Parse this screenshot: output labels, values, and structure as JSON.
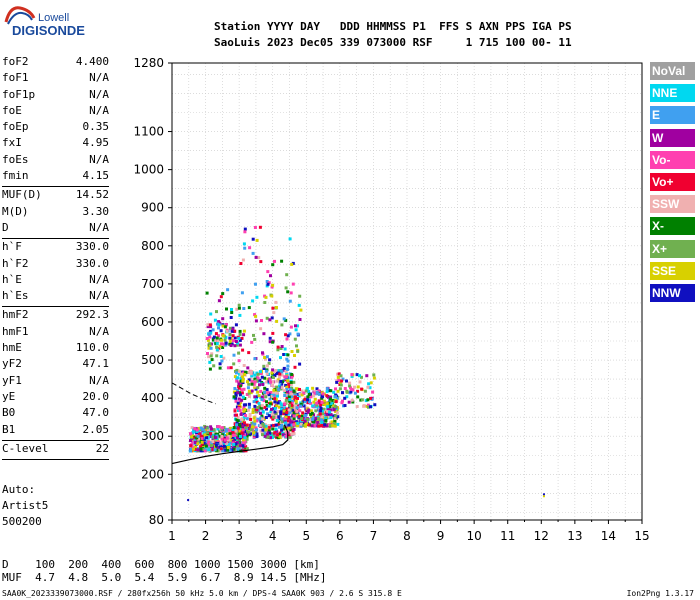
{
  "logo": {
    "top": "Lowell",
    "bottom": "DIGISONDE"
  },
  "header": {
    "line1": "Station YYYY DAY   DDD HHMMSS P1  FFS S AXN PPS IGA PS",
    "line2": "SaoLuis 2023 Dec05 339 073000 RSF     1 715 100 00- 11"
  },
  "params_groups": [
    [
      {
        "name": "foF2",
        "value": "4.400"
      },
      {
        "name": "foF1",
        "value": "N/A"
      },
      {
        "name": "foF1p",
        "value": "N/A"
      },
      {
        "name": "foE",
        "value": "N/A"
      },
      {
        "name": "foEp",
        "value": "0.35"
      },
      {
        "name": "fxI",
        "value": "4.95"
      },
      {
        "name": "foEs",
        "value": "N/A"
      },
      {
        "name": "fmin",
        "value": "4.15"
      }
    ],
    [
      {
        "name": "MUF(D)",
        "value": "14.52"
      },
      {
        "name": "M(D)",
        "value": "3.30"
      },
      {
        "name": "D",
        "value": "N/A"
      }
    ],
    [
      {
        "name": "h`F",
        "value": "330.0"
      },
      {
        "name": "h`F2",
        "value": "330.0"
      },
      {
        "name": "h`E",
        "value": "N/A"
      },
      {
        "name": "h`Es",
        "value": "N/A"
      }
    ],
    [
      {
        "name": "hmF2",
        "value": "292.3"
      },
      {
        "name": "hmF1",
        "value": "N/A"
      },
      {
        "name": "hmE",
        "value": "110.0"
      },
      {
        "name": "yF2",
        "value": "47.1"
      },
      {
        "name": "yF1",
        "value": "N/A"
      },
      {
        "name": "yE",
        "value": "20.0"
      },
      {
        "name": "B0",
        "value": "47.0"
      },
      {
        "name": "B1",
        "value": "2.05"
      }
    ],
    [
      {
        "name": "C-level",
        "value": "22"
      }
    ]
  ],
  "auto": {
    "line1": "Auto:",
    "line2": "Artist5",
    "line3": "500200"
  },
  "legend": [
    {
      "label": "NoVal",
      "color": "#a0a0a0"
    },
    {
      "label": "NNE",
      "color": "#00d8f0"
    },
    {
      "label": "E",
      "color": "#40a0f0"
    },
    {
      "label": "W",
      "color": "#a000a0"
    },
    {
      "label": "Vo-",
      "color": "#ff40b0"
    },
    {
      "label": "Vo+",
      "color": "#f00030"
    },
    {
      "label": "SSW",
      "color": "#f0b0b0"
    },
    {
      "label": "X-",
      "color": "#008000"
    },
    {
      "label": "X+",
      "color": "#70b050"
    },
    {
      "label": "SSE",
      "color": "#d8d000"
    },
    {
      "label": "NNW",
      "color": "#1010c0"
    }
  ],
  "muf_table": {
    "line1": "D    100  200  400  600  800 1000 1500 3000 [km]",
    "line2": "MUF  4.7  4.8  5.0  5.4  5.9  6.7  8.9 14.5 [MHz]"
  },
  "footer": {
    "left": "SAA0K_2023339073000.RSF / 280fx256h 50 kHz 5.0 km / DPS-4 SAA0K 903 / 2.6 S 315.8 E",
    "right": "Ion2Png 1.3.17"
  },
  "chart_data": {
    "type": "scatter",
    "xlim": [
      1,
      15
    ],
    "ylim": [
      80,
      1280
    ],
    "x_ticks": [
      "1",
      "2",
      "3",
      "4",
      "5",
      "6",
      "7",
      "8",
      "9",
      "10",
      "11",
      "12",
      "13",
      "14",
      "15"
    ],
    "y_ticks": [
      {
        "v": 1280,
        "label": "1280"
      },
      {
        "v": 1100,
        "label": "1100"
      },
      {
        "v": 1000,
        "label": "1000"
      },
      {
        "v": 900,
        "label": "900"
      },
      {
        "v": 800,
        "label": "800"
      },
      {
        "v": 700,
        "label": "700"
      },
      {
        "v": 600,
        "label": "600"
      },
      {
        "v": 500,
        "label": "500"
      },
      {
        "v": 400,
        "label": "400"
      },
      {
        "v": 300,
        "label": "300"
      },
      {
        "v": 200,
        "label": "200"
      },
      {
        "v": 80,
        "label": "80"
      }
    ],
    "grid": true,
    "clusters": [
      {
        "f": [
          1.5,
          3.2
        ],
        "h": [
          265,
          330
        ],
        "n": 520
      },
      {
        "f": [
          2.8,
          4.6
        ],
        "h": [
          300,
          480
        ],
        "n": 620
      },
      {
        "f": [
          4.3,
          5.9
        ],
        "h": [
          330,
          430
        ],
        "n": 420
      },
      {
        "f": [
          5.8,
          7.0
        ],
        "h": [
          380,
          470
        ],
        "n": 80
      },
      {
        "f": [
          2.0,
          4.8
        ],
        "h": [
          480,
          700
        ],
        "n": 170
      },
      {
        "f": [
          3.0,
          4.6
        ],
        "h": [
          700,
          860
        ],
        "n": 30
      },
      {
        "f": [
          2.0,
          3.0
        ],
        "h": [
          540,
          600
        ],
        "n": 60
      }
    ],
    "isolated_points": [
      {
        "f": 1.45,
        "h": 135,
        "color": "#1010c0"
      },
      {
        "f": 12.05,
        "h": 150,
        "color": "#1010c0"
      },
      {
        "f": 12.05,
        "h": 145,
        "color": "#d8d000"
      }
    ],
    "profile_curve": [
      [
        1.0,
        228
      ],
      [
        1.5,
        238
      ],
      [
        2.0,
        247
      ],
      [
        2.5,
        254
      ],
      [
        3.0,
        260
      ],
      [
        3.5,
        266
      ],
      [
        4.0,
        272
      ],
      [
        4.3,
        278
      ],
      [
        4.45,
        290
      ],
      [
        4.45,
        310
      ],
      [
        4.35,
        330
      ]
    ],
    "dashed_curve": [
      [
        1.0,
        440
      ],
      [
        1.3,
        425
      ],
      [
        1.6,
        410
      ],
      [
        2.0,
        395
      ],
      [
        2.3,
        385
      ]
    ]
  }
}
